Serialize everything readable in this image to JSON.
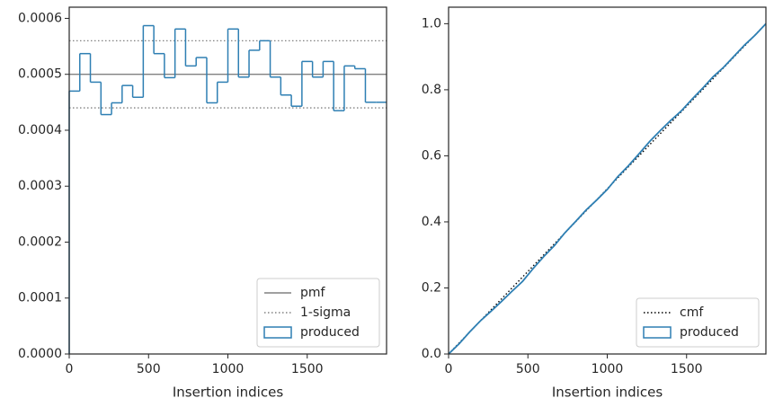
{
  "chart_data": [
    {
      "type": "histogram",
      "xlabel": "Insertion indices",
      "name": "produced",
      "color": "#2e7fb3",
      "bins": [
        0,
        66.67,
        133.33,
        200,
        266.67,
        333.33,
        400,
        466.67,
        533.33,
        600,
        666.67,
        733.33,
        800,
        866.67,
        933.33,
        1000,
        1066.67,
        1133.33,
        1200,
        1266.67,
        1333.33,
        1400,
        1466.67,
        1533.33,
        1600,
        1666.67,
        1733.33,
        1800,
        1866.67,
        1933.33,
        2000
      ],
      "values": [
        0.00047,
        0.000537,
        0.000486,
        0.000428,
        0.000449,
        0.00048,
        0.000459,
        0.000587,
        0.000537,
        0.000494,
        0.000581,
        0.000515,
        0.00053,
        0.000449,
        0.000486,
        0.000581,
        0.000495,
        0.000543,
        0.00056,
        0.000495,
        0.000463,
        0.000443,
        0.000523,
        0.000495,
        0.000523,
        0.000435,
        0.000515,
        0.00051,
        0.00045,
        0.00045
      ],
      "hlines": [
        {
          "name": "pmf",
          "color": "#808080",
          "style": "solid",
          "values": [
            0.0005
          ]
        },
        {
          "name": "1-sigma",
          "color": "#808080",
          "style": "dotted",
          "values": [
            0.00056,
            0.00044
          ]
        }
      ],
      "xlim": [
        0,
        2000
      ],
      "xticks": [
        0,
        500,
        1000,
        1500
      ],
      "ylim": [
        0,
        0.00062
      ],
      "yticks": [
        {
          "value": 0,
          "label": "0.0000"
        },
        0.0001,
        0.0002,
        0.0003,
        0.0004,
        0.0005,
        0.0006
      ],
      "legend": "lower right"
    },
    {
      "type": "line",
      "xlabel": "Insertion indices",
      "series": [
        {
          "name": "cmf",
          "color": "#000000",
          "style": "dotted",
          "x": [
            0,
            2000
          ],
          "values": [
            0,
            1
          ]
        },
        {
          "name": "produced",
          "color": "#2e7fb3",
          "style": "solid",
          "marker": "patch",
          "x": [
            0,
            66.67,
            133.33,
            200,
            266.67,
            333.33,
            400,
            466.67,
            533.33,
            600,
            666.67,
            733.33,
            800,
            866.67,
            933.33,
            1000,
            1066.67,
            1133.33,
            1200,
            1266.67,
            1333.33,
            1400,
            1466.67,
            1533.33,
            1600,
            1666.67,
            1733.33,
            1800,
            1866.67,
            1933.33,
            2000
          ],
          "values": [
            0,
            0.031,
            0.067,
            0.1,
            0.129,
            0.159,
            0.19,
            0.22,
            0.259,
            0.295,
            0.328,
            0.367,
            0.401,
            0.436,
            0.466,
            0.498,
            0.537,
            0.57,
            0.606,
            0.643,
            0.676,
            0.707,
            0.736,
            0.771,
            0.804,
            0.839,
            0.868,
            0.902,
            0.936,
            0.966,
            1.0
          ]
        }
      ],
      "xlim": [
        0,
        2000
      ],
      "xticks": [
        0,
        500,
        1000,
        1500
      ],
      "ylim": [
        0,
        1.05
      ],
      "yticks": [
        {
          "value": 0,
          "label": "0.0"
        },
        0.2,
        0.4,
        0.6,
        0.8,
        {
          "value": 1,
          "label": "1.0"
        }
      ],
      "legend": "lower right"
    }
  ]
}
